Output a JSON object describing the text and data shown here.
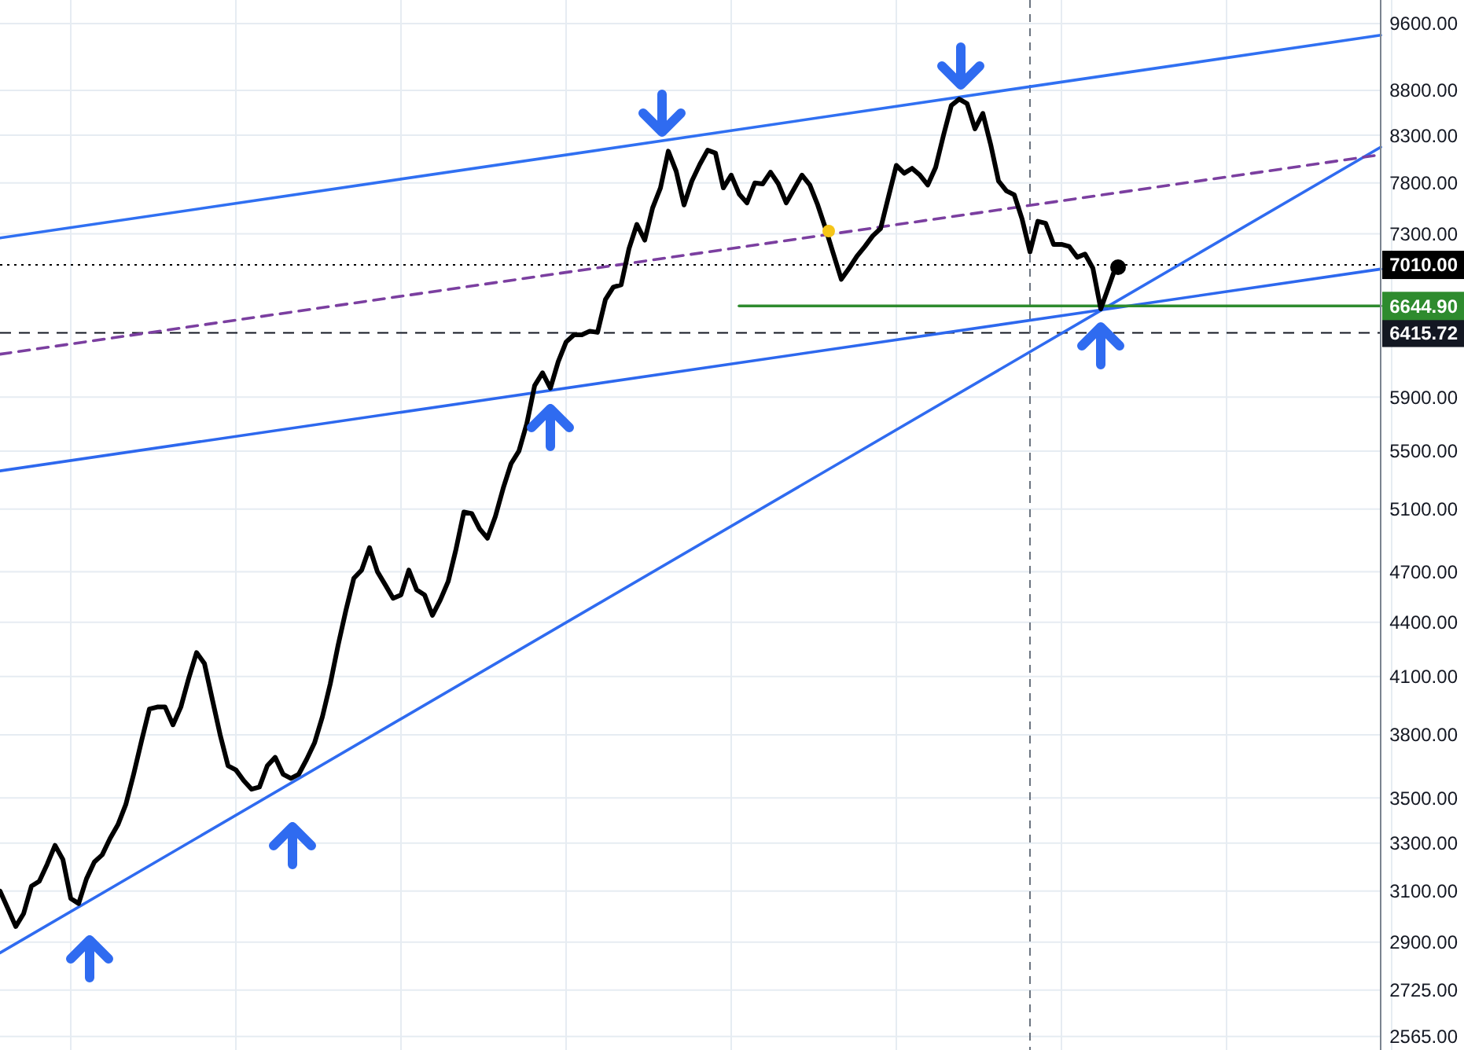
{
  "chart_data": {
    "type": "line",
    "log": "y",
    "grid": true,
    "tick_labels": "y",
    "categories": [
      null,
      null,
      null,
      null,
      null,
      null,
      null,
      null,
      null,
      null,
      null,
      null,
      null,
      null,
      null,
      null,
      null,
      null,
      null,
      null,
      null,
      null,
      null,
      null,
      null,
      null,
      null,
      null,
      null,
      null,
      null,
      null,
      null,
      null,
      null,
      null,
      null,
      null,
      null,
      null,
      null,
      null,
      null,
      null,
      null,
      null,
      null,
      null,
      null,
      null,
      null,
      null,
      null,
      null,
      null,
      null,
      null,
      null,
      null,
      null,
      null,
      null,
      null,
      null,
      null,
      null,
      null,
      null,
      null,
      null,
      null,
      null,
      null,
      null,
      null,
      null,
      null,
      null,
      null,
      null,
      null,
      null,
      null,
      null,
      null,
      null,
      null,
      null,
      null,
      null,
      null,
      null,
      null,
      null,
      null,
      null,
      null,
      null,
      null,
      null,
      null,
      null,
      null,
      null,
      null,
      null,
      null,
      null,
      null,
      null,
      null,
      null,
      null,
      null,
      null,
      null,
      null,
      null,
      null,
      null,
      null,
      null,
      null,
      null,
      null,
      null,
      null,
      null,
      null,
      null,
      null,
      null,
      null,
      null,
      null,
      null,
      null,
      null,
      null,
      null,
      null,
      null,
      null
    ],
    "ylim": [
      2520,
      9900
    ],
    "yticks": [
      {
        "value": 2565,
        "label": "2565.00"
      },
      {
        "value": 2725,
        "label": "2725.00"
      },
      {
        "value": 2900,
        "label": "2900.00"
      },
      {
        "value": 3100,
        "label": "3100.00"
      },
      {
        "value": 3300,
        "label": "3300.00"
      },
      {
        "value": 3500,
        "label": "3500.00"
      },
      {
        "value": 3800,
        "label": "3800.00"
      },
      {
        "value": 4100,
        "label": "4100.00"
      },
      {
        "value": 4400,
        "label": "4400.00"
      },
      {
        "value": 4700,
        "label": "4700.00"
      },
      {
        "value": 5100,
        "label": "5100.00"
      },
      {
        "value": 5500,
        "label": "5500.00"
      },
      {
        "value": 5900,
        "label": "5900.00"
      },
      {
        "value": 7300,
        "label": "7300.00"
      },
      {
        "value": 7800,
        "label": "7800.00"
      },
      {
        "value": 8300,
        "label": "8300.00"
      },
      {
        "value": 8800,
        "label": "8800.00"
      },
      {
        "value": 9600,
        "label": "9600.00"
      }
    ],
    "series": [
      {
        "color": "#2f6bf0",
        "values": [
          2860,
          null,
          null,
          null,
          null,
          null,
          null,
          null,
          null,
          null,
          null,
          null,
          null,
          null,
          null,
          null,
          null,
          null,
          null,
          null,
          null,
          null,
          null,
          null,
          null,
          null,
          null,
          null,
          null,
          null,
          null,
          null,
          null,
          null,
          null,
          null,
          null,
          null,
          null,
          null,
          null,
          null,
          null,
          null,
          null,
          null,
          null,
          null,
          null,
          null,
          null,
          null,
          null,
          null,
          null,
          null,
          null,
          null,
          null,
          null,
          null,
          null,
          null,
          null,
          null,
          null,
          null,
          null,
          null,
          null,
          null,
          null,
          null,
          null,
          null,
          null,
          null,
          null,
          null,
          null,
          null,
          null,
          null,
          null,
          null,
          null,
          null,
          null,
          null,
          null,
          null,
          null,
          null,
          null,
          null,
          null,
          null,
          null,
          null,
          null,
          null,
          null,
          null,
          null,
          null,
          null,
          null,
          null,
          null,
          null,
          null,
          null,
          null,
          null,
          null,
          null,
          null,
          null,
          null,
          null,
          null,
          null,
          null,
          null,
          null,
          null,
          null,
          null,
          null,
          null,
          null,
          null,
          null,
          null,
          null,
          null,
          null,
          null,
          null,
          null,
          null,
          null,
          6685
        ]
      },
      {
        "color": "#3070f2",
        "values": [
          7260,
          null,
          null,
          null,
          null,
          null,
          null,
          null,
          null,
          null,
          null,
          null,
          null,
          null,
          null,
          null,
          null,
          null,
          null,
          null,
          null,
          null,
          null,
          null,
          null,
          null,
          null,
          null,
          null,
          null,
          null,
          null,
          null,
          null,
          null,
          null,
          null,
          null,
          null,
          null,
          null,
          null,
          null,
          null,
          null,
          null,
          null,
          null,
          null,
          null,
          null,
          null,
          null,
          null,
          null,
          null,
          null,
          null,
          null,
          null,
          null,
          null,
          null,
          null,
          null,
          null,
          null,
          null,
          null,
          null,
          null,
          null,
          null,
          null,
          null,
          null,
          null,
          null,
          null,
          null,
          null,
          null,
          null,
          null,
          null,
          null,
          null,
          null,
          null,
          null,
          null,
          null,
          null,
          null,
          null,
          null,
          null,
          null,
          null,
          null,
          null,
          null,
          null,
          null,
          null,
          null,
          null,
          null,
          null,
          null,
          null,
          null,
          null,
          null,
          null,
          null,
          null,
          null,
          null,
          null,
          null,
          null,
          null,
          null,
          null,
          null,
          null,
          null,
          null,
          null,
          null,
          null,
          null,
          null,
          null,
          null,
          null,
          null,
          null,
          null,
          null,
          null,
          8990
        ]
      },
      {
        "color": "#2d68ee",
        "values": [
          5360,
          null,
          null,
          null,
          null,
          null,
          null,
          null,
          null,
          null,
          null,
          null,
          null,
          null,
          null,
          null,
          null,
          null,
          null,
          null,
          null,
          null,
          null,
          null,
          null,
          null,
          null,
          null,
          null,
          null,
          null,
          null,
          null,
          null,
          null,
          null,
          null,
          null,
          null,
          null,
          null,
          null,
          null,
          null,
          null,
          null,
          null,
          null,
          null,
          null,
          null,
          null,
          null,
          null,
          null,
          null,
          null,
          null,
          null,
          null,
          null,
          null,
          null,
          null,
          null,
          null,
          null,
          null,
          null,
          null,
          null,
          null,
          null,
          null,
          null,
          null,
          null,
          null,
          null,
          null,
          null,
          null,
          null,
          null,
          null,
          null,
          null,
          null,
          null,
          null,
          null,
          null,
          null,
          null,
          null,
          null,
          null,
          null,
          null,
          null,
          null,
          null,
          null,
          null,
          null,
          null,
          null,
          null,
          null,
          null,
          null,
          null,
          null,
          null,
          null,
          null,
          null,
          null,
          null,
          null,
          null,
          null,
          null,
          null,
          null,
          null,
          null,
          null,
          null,
          null,
          null,
          null,
          null,
          null,
          null,
          null,
          null,
          null,
          null,
          null,
          null,
          null,
          6630
        ]
      },
      {
        "color": "#7b3fa0",
        "line_style": "dashed",
        "values": [
          6240,
          null,
          null,
          null,
          null,
          null,
          null,
          null,
          null,
          null,
          null,
          null,
          null,
          null,
          null,
          null,
          null,
          null,
          null,
          null,
          null,
          null,
          null,
          null,
          null,
          null,
          null,
          null,
          null,
          null,
          null,
          null,
          null,
          null,
          null,
          null,
          null,
          null,
          null,
          null,
          null,
          null,
          null,
          null,
          null,
          null,
          null,
          null,
          null,
          null,
          null,
          null,
          null,
          null,
          null,
          null,
          null,
          null,
          null,
          null,
          null,
          null,
          null,
          null,
          null,
          null,
          null,
          null,
          null,
          null,
          null,
          null,
          null,
          null,
          null,
          null,
          null,
          null,
          null,
          null,
          null,
          null,
          null,
          null,
          null,
          null,
          null,
          null,
          null,
          null,
          null,
          null,
          null,
          null,
          null,
          null,
          null,
          null,
          null,
          null,
          null,
          null,
          null,
          null,
          null,
          null,
          null,
          null,
          null,
          null,
          null,
          null,
          null,
          null,
          null,
          null,
          null,
          null,
          null,
          null,
          null,
          null,
          null,
          null,
          null,
          null,
          null,
          null,
          null,
          null,
          null,
          null,
          null,
          null,
          null,
          null,
          null,
          null,
          null,
          null,
          null,
          null,
          7700
        ]
      },
      {
        "color": "#2e8b2e",
        "values": [
          null,
          null,
          null,
          null,
          null,
          null,
          null,
          null,
          null,
          null,
          null,
          null,
          null,
          null,
          null,
          null,
          null,
          null,
          null,
          null,
          null,
          null,
          null,
          null,
          null,
          null,
          null,
          null,
          null,
          null,
          null,
          null,
          null,
          null,
          null,
          null,
          null,
          null,
          null,
          null,
          null,
          null,
          null,
          null,
          null,
          null,
          null,
          null,
          null,
          null,
          null,
          null,
          null,
          null,
          null,
          null,
          null,
          null,
          null,
          null,
          null,
          null,
          null,
          null,
          null,
          null,
          null,
          null,
          null,
          null,
          null,
          null,
          null,
          null,
          null,
          null,
          null,
          null,
          null,
          null,
          null,
          null,
          null,
          null,
          null,
          null,
          null,
          null,
          null,
          null,
          null,
          null,
          null,
          null,
          6644.9,
          null,
          null,
          null,
          null,
          null,
          null,
          null,
          null,
          null,
          null,
          null,
          null,
          null,
          null,
          null,
          null,
          null,
          null,
          null,
          null,
          null,
          null,
          null,
          null,
          null,
          null,
          null,
          null,
          null,
          null,
          null,
          null,
          null,
          null,
          null,
          null,
          null,
          null,
          null,
          null,
          null,
          null,
          null,
          null,
          null,
          null,
          null,
          6644.9
        ]
      },
      {
        "color": "#000000",
        "values": [
          3100,
          3030,
          2960,
          3010,
          3120,
          3140,
          3210,
          3290,
          3230,
          3070,
          3050,
          3150,
          3220,
          3250,
          3320,
          3380,
          3470,
          3610,
          3770,
          3930,
          3940,
          3940,
          3850,
          3940,
          4090,
          4230,
          4170,
          3980,
          3800,
          3650,
          3630,
          3580,
          3540,
          3550,
          3650,
          3690,
          3610,
          3590,
          3610,
          3680,
          3760,
          3890,
          4060,
          4270,
          4470,
          4660,
          4710,
          4850,
          4700,
          4620,
          4540,
          4560,
          4710,
          4590,
          4560,
          4440,
          4530,
          4640,
          4840,
          5080,
          5070,
          4970,
          4910,
          5050,
          5240,
          5410,
          5500,
          5700,
          5990,
          6090,
          5970,
          6180,
          6340,
          6400,
          6400,
          6430,
          6420,
          6700,
          6810,
          6830,
          7160,
          7390,
          7240,
          7550,
          7750,
          8130,
          7920,
          7580,
          7820,
          7990,
          8140,
          8110,
          7750,
          7880,
          7690,
          7600,
          7800,
          7790,
          7910,
          7790,
          7600,
          7740,
          7880,
          7780,
          7580,
          7350,
          7110,
          6880,
          6980,
          7090,
          7180,
          7280,
          7350,
          7660,
          7980,
          7900,
          7950,
          7880,
          7780,
          7960,
          8300,
          8630,
          8700,
          8650,
          8370,
          8540,
          8200,
          7820,
          7720,
          7680,
          7440,
          7130,
          7420,
          7400,
          7200,
          7200,
          7180,
          7080,
          7110,
          6980,
          6620,
          6810,
          7010
        ]
      }
    ],
    "annotations": [
      "6644.90"
    ],
    "ref_lines": [
      {
        "axis": "y",
        "value": 7010,
        "label": "7010.00",
        "color": "#000000",
        "line_style": "dotted"
      },
      {
        "axis": "y",
        "value": 6415.72,
        "label": "6415.72",
        "color": "#131722",
        "line_style": "dashed"
      }
    ]
  }
}
